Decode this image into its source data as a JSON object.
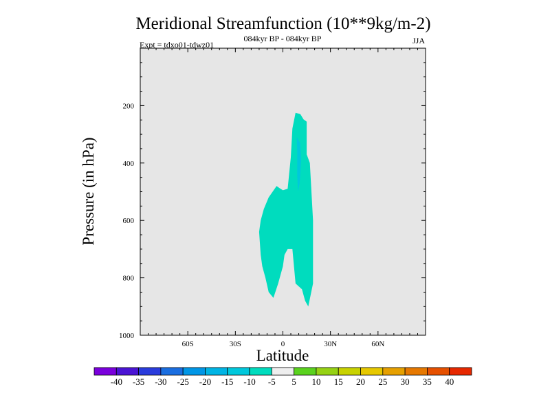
{
  "chart_data": {
    "type": "contour",
    "title": "Meridional Streamfunction (10**9kg/m-2)",
    "subtitle": "084kyr BP - 084kyr BP",
    "left_label": "Expt = tdxo01-tdwz01",
    "right_label": "JJA",
    "xlabel": "Latitude",
    "ylabel": "Pressure (in hPa)",
    "x_range": [
      -90,
      90
    ],
    "y_range": [
      1000,
      0
    ],
    "x_ticks": [
      {
        "value": -60,
        "label": "60S"
      },
      {
        "value": -30,
        "label": "30S"
      },
      {
        "value": 0,
        "label": "0"
      },
      {
        "value": 30,
        "label": "30N"
      },
      {
        "value": 60,
        "label": "60N"
      }
    ],
    "y_ticks": [
      {
        "value": 200,
        "label": "200"
      },
      {
        "value": 400,
        "label": "400"
      },
      {
        "value": 600,
        "label": "600"
      },
      {
        "value": 800,
        "label": "800"
      },
      {
        "value": 1000,
        "label": "1000"
      }
    ],
    "background_color": "#e6e6e6",
    "filled_regions": [
      {
        "name": "contour-region-main",
        "level_range": [
          -10,
          -5
        ],
        "color": "#00dcbe",
        "points": [
          [
            8,
            225
          ],
          [
            11,
            230
          ],
          [
            13,
            248
          ],
          [
            15,
            256
          ],
          [
            15,
            370
          ],
          [
            17,
            400
          ],
          [
            19,
            600
          ],
          [
            19,
            820
          ],
          [
            16,
            900
          ],
          [
            14,
            880
          ],
          [
            12,
            840
          ],
          [
            8,
            820
          ],
          [
            6,
            700
          ],
          [
            3,
            700
          ],
          [
            1,
            720
          ],
          [
            0,
            760
          ],
          [
            -3,
            820
          ],
          [
            -6,
            870
          ],
          [
            -9,
            850
          ],
          [
            -11,
            800
          ],
          [
            -13,
            760
          ],
          [
            -14,
            720
          ],
          [
            -15,
            640
          ],
          [
            -14,
            600
          ],
          [
            -12,
            560
          ],
          [
            -9,
            520
          ],
          [
            -4,
            480
          ],
          [
            -2,
            488
          ],
          [
            0,
            495
          ],
          [
            3,
            490
          ],
          [
            5,
            380
          ],
          [
            6,
            280
          ]
        ]
      },
      {
        "name": "contour-region-core",
        "level_range": [
          -15,
          -10
        ],
        "color": "#00c8dc",
        "points": [
          [
            8.7,
            310
          ],
          [
            10.8,
            330
          ],
          [
            11.5,
            390
          ],
          [
            10.6,
            470
          ],
          [
            9.5,
            500
          ],
          [
            9,
            440
          ],
          [
            9,
            360
          ]
        ]
      }
    ],
    "colorbar": {
      "levels": [
        "-40",
        "-35",
        "-30",
        "-25",
        "-20",
        "-15",
        "-10",
        "-5",
        "5",
        "10",
        "15",
        "20",
        "25",
        "30",
        "35",
        "40"
      ],
      "colors": [
        "#7a00dc",
        "#4a14d4",
        "#2a3cdc",
        "#1a6ee0",
        "#0096e6",
        "#00b4e4",
        "#00c8dc",
        "#00dcbe",
        "#eeeeee",
        "#5ad21e",
        "#96d214",
        "#c8d200",
        "#e6c800",
        "#e6a000",
        "#e67800",
        "#e65000",
        "#e62800"
      ]
    }
  }
}
